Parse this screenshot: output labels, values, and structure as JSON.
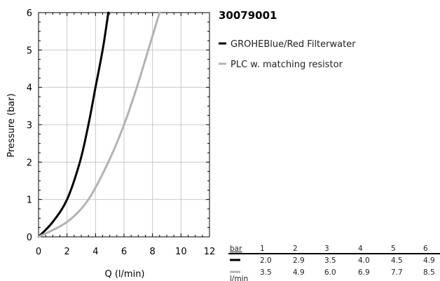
{
  "chart_data": {
    "type": "line",
    "title": "30079001",
    "xlabel": "Q (l/min)",
    "ylabel": "Pressure (bar)",
    "xlim": [
      0,
      12
    ],
    "ylim": [
      0,
      6
    ],
    "x_ticks": [
      0,
      2,
      4,
      6,
      8,
      10,
      12
    ],
    "y_ticks": [
      0,
      1,
      2,
      3,
      4,
      5,
      6
    ],
    "grid": true,
    "legend_position": "top-right outside plot",
    "series": [
      {
        "name": "GROHEBlue/Red Filterwater",
        "color": "#000000",
        "x": [
          0,
          1.0,
          2.0,
          2.9,
          3.5,
          4.0,
          4.5,
          4.9
        ],
        "y": [
          0,
          0.4,
          1,
          2,
          3,
          4,
          5,
          6
        ]
      },
      {
        "name": "PLC w. matching resistor",
        "color": "#b3b3b3",
        "x": [
          0,
          2.0,
          3.5,
          4.9,
          6.0,
          6.9,
          7.7,
          8.5
        ],
        "y": [
          0,
          0.4,
          1,
          2,
          3,
          4,
          5,
          6
        ]
      }
    ],
    "table": {
      "head_label": "bar",
      "unit_label": "l/min",
      "pressures": [
        "1",
        "2",
        "3",
        "4",
        "5",
        "6"
      ],
      "rows": [
        {
          "color": "#000000",
          "values": [
            "2.0",
            "2.9",
            "3.5",
            "4.0",
            "4.5",
            "4.9"
          ]
        },
        {
          "color": "#b3b3b3",
          "values": [
            "3.5",
            "4.9",
            "6.0",
            "6.9",
            "7.7",
            "8.5"
          ]
        }
      ]
    }
  }
}
